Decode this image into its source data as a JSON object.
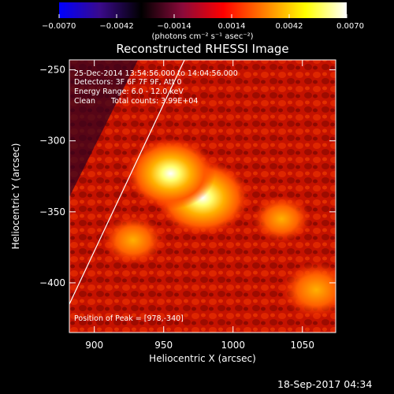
{
  "chart_data": {
    "type": "heatmap",
    "title": "Reconstructed RHESSI Image",
    "xlabel": "Heliocentric X (arcsec)",
    "ylabel": "Heliocentric Y (arcsec)",
    "xlim": [
      882,
      1074
    ],
    "ylim": [
      -435,
      -243
    ],
    "xticks": [
      {
        "value": 900,
        "label": "900"
      },
      {
        "value": 950,
        "label": "950"
      },
      {
        "value": 1000,
        "label": "1000"
      },
      {
        "value": 1050,
        "label": "1050"
      }
    ],
    "yticks": [
      {
        "value": -250,
        "label": "−250"
      },
      {
        "value": -300,
        "label": "−300"
      },
      {
        "value": -350,
        "label": "−350"
      },
      {
        "value": -400,
        "label": "−400"
      }
    ],
    "colorbar": {
      "min": -0.007,
      "max": 0.007,
      "ticks": [
        {
          "value": -0.007,
          "label": "−0.0070"
        },
        {
          "value": -0.0042,
          "label": "−0.0042"
        },
        {
          "value": -0.0014,
          "label": "−0.0014"
        },
        {
          "value": 0.0014,
          "label": "0.0014"
        },
        {
          "value": 0.0042,
          "label": "0.0042"
        },
        {
          "value": 0.007,
          "label": "0.0070"
        }
      ],
      "unit_label": "(photons cm⁻² s⁻¹ asec⁻²)",
      "colors": [
        "#0000ff",
        "#3a0a8a",
        "#000000",
        "#8a0a3a",
        "#ff0000",
        "#ff7f00",
        "#ffff00",
        "#ffffff"
      ]
    },
    "annotations": {
      "time_range": "25-Dec-2014 13:54:56.000 to 14:04:56.000",
      "detectors": "Detectors: 3F 6F 7F 9F, Att 0",
      "energy": "Energy Range: 6.0 - 12.0 keV",
      "clean_label": "Clean",
      "total_counts": "Total counts: 3.99E+04",
      "peak": "Position of Peak = [978,-340]"
    },
    "sources": [
      {
        "x": 978,
        "y": -340,
        "intensity": 1.0
      },
      {
        "x": 955,
        "y": -323,
        "intensity": 0.9
      },
      {
        "x": 1060,
        "y": -405,
        "intensity": 0.55
      },
      {
        "x": 1035,
        "y": -355,
        "intensity": 0.35
      },
      {
        "x": 928,
        "y": -370,
        "intensity": 0.4
      }
    ],
    "limb": [
      [
        882,
        -415
      ],
      [
        965,
        -243
      ]
    ],
    "background_color": "#c01000"
  },
  "footer": {
    "timestamp": "18-Sep-2017 04:34"
  }
}
